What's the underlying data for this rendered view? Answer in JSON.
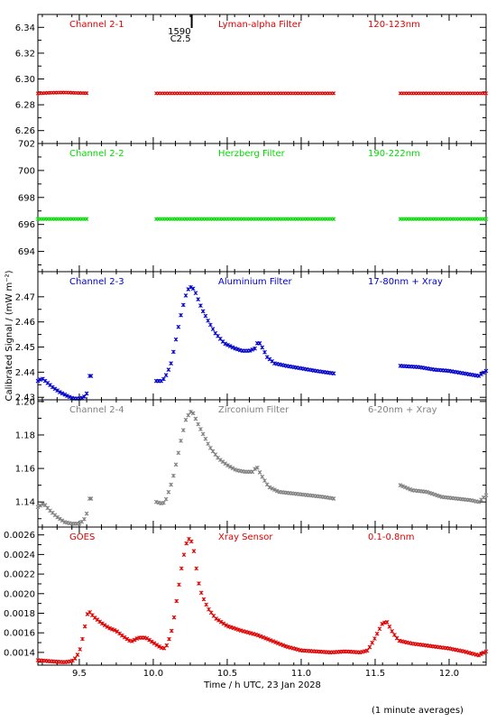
{
  "chart_data": {
    "type": "scatter",
    "xlabel": "Time / h UTC, 23 Jan 2028",
    "ylabel": "Calibrated Signal / (mW m⁻²)",
    "xlim": [
      9.22,
      12.25
    ],
    "xticks": [
      9.5,
      10.0,
      10.5,
      11.0,
      11.5,
      12.0
    ],
    "xtick_labels": [
      "9.5",
      "10.0",
      "10.5",
      "11.0",
      "11.5",
      "12.0"
    ],
    "footnote": "(1 minute averages)",
    "event_marker": {
      "x": 10.26,
      "label_top": "1590",
      "label_bottom": "C2.5"
    },
    "panels": [
      {
        "channel": "Channel 2-1",
        "filter": "Lyman-alpha Filter",
        "range": "120-123nm",
        "color": "#dd0000",
        "ylim": [
          6.25,
          6.35
        ],
        "yticks": [
          6.26,
          6.28,
          6.3,
          6.32,
          6.34
        ],
        "ytick_labels": [
          "6.26",
          "6.28",
          "6.30",
          "6.32",
          "6.34"
        ],
        "segments": [
          {
            "x0": 9.22,
            "x1": 9.55,
            "pts": [
              [
                9.22,
                6.2888
              ],
              [
                9.3,
                6.2893
              ],
              [
                9.4,
                6.2895
              ],
              [
                9.5,
                6.2891
              ],
              [
                9.55,
                6.289
              ]
            ]
          },
          {
            "x0": 10.02,
            "x1": 11.22,
            "pts": [
              [
                10.02,
                6.2889
              ],
              [
                11.22,
                6.2889
              ]
            ]
          },
          {
            "x0": 11.67,
            "x1": 12.25,
            "pts": [
              [
                11.67,
                6.2889
              ],
              [
                12.25,
                6.2889
              ]
            ]
          }
        ]
      },
      {
        "channel": "Channel 2-2",
        "filter": "Herzberg Filter",
        "range": "190-222nm",
        "color": "#00dd00",
        "ylim": [
          692.5,
          702.0
        ],
        "yticks": [
          694,
          696,
          698,
          700,
          702
        ],
        "ytick_labels": [
          "694",
          "696",
          "698",
          "700",
          "702"
        ],
        "segments": [
          {
            "x0": 9.22,
            "x1": 9.55,
            "pts": [
              [
                9.22,
                696.4
              ],
              [
                9.55,
                696.4
              ]
            ]
          },
          {
            "x0": 10.02,
            "x1": 11.22,
            "pts": [
              [
                10.02,
                696.4
              ],
              [
                11.22,
                696.4
              ]
            ]
          },
          {
            "x0": 11.67,
            "x1": 12.25,
            "pts": [
              [
                11.67,
                696.4
              ],
              [
                12.25,
                696.4
              ]
            ]
          }
        ]
      },
      {
        "channel": "Channel 2-3",
        "filter": "Aluminium Filter",
        "range": "17-80nm + Xray",
        "color": "#0000cc",
        "ylim": [
          2.429,
          2.48
        ],
        "yticks": [
          2.43,
          2.44,
          2.45,
          2.46,
          2.47
        ],
        "ytick_labels": [
          "2.43",
          "2.44",
          "2.45",
          "2.46",
          "2.47"
        ],
        "segments": [
          {
            "x0": 9.22,
            "x1": 9.55,
            "pts": [
              [
                9.22,
                2.4365
              ],
              [
                9.25,
                2.4375
              ],
              [
                9.28,
                2.436
              ],
              [
                9.32,
                2.434
              ],
              [
                9.37,
                2.432
              ],
              [
                9.42,
                2.4305
              ],
              [
                9.46,
                2.4295
              ],
              [
                9.5,
                2.4295
              ],
              [
                9.53,
                2.43
              ],
              [
                9.55,
                2.4315
              ]
            ]
          },
          {
            "x0": 9.57,
            "x1": 9.58,
            "pts": [
              [
                9.57,
                2.4385
              ],
              [
                9.58,
                2.4385
              ]
            ]
          },
          {
            "x0": 10.02,
            "x1": 11.22,
            "pts": [
              [
                10.02,
                2.4365
              ],
              [
                10.06,
                2.4365
              ],
              [
                10.08,
                2.438
              ],
              [
                10.1,
                2.4405
              ],
              [
                10.12,
                2.4435
              ],
              [
                10.14,
                2.449
              ],
              [
                10.16,
                2.455
              ],
              [
                10.18,
                2.461
              ],
              [
                10.2,
                2.466
              ],
              [
                10.22,
                2.4705
              ],
              [
                10.24,
                2.4735
              ],
              [
                10.26,
                2.474
              ],
              [
                10.28,
                2.4725
              ],
              [
                10.3,
                2.4695
              ],
              [
                10.33,
                2.465
              ],
              [
                10.37,
                2.4605
              ],
              [
                10.42,
                2.4555
              ],
              [
                10.48,
                2.4515
              ],
              [
                10.55,
                2.4495
              ],
              [
                10.6,
                2.4485
              ],
              [
                10.65,
                2.4485
              ],
              [
                10.69,
                2.4495
              ],
              [
                10.71,
                2.4525
              ],
              [
                10.74,
                2.4495
              ],
              [
                10.77,
                2.446
              ],
              [
                10.82,
                2.4435
              ],
              [
                10.9,
                2.4425
              ],
              [
                11.0,
                2.4415
              ],
              [
                11.1,
                2.4405
              ],
              [
                11.22,
                2.4395
              ]
            ]
          },
          {
            "x0": 11.67,
            "x1": 12.25,
            "pts": [
              [
                11.67,
                2.4425
              ],
              [
                11.8,
                2.442
              ],
              [
                11.9,
                2.441
              ],
              [
                12.0,
                2.4405
              ],
              [
                12.1,
                2.4395
              ],
              [
                12.2,
                2.4385
              ],
              [
                12.25,
                2.4405
              ]
            ]
          }
        ]
      },
      {
        "channel": "Channel 2-4",
        "filter": "Zirconium Filter",
        "range": "6-20nm + Xray",
        "color": "#808080",
        "ylim": [
          1.125,
          1.201
        ],
        "yticks": [
          1.14,
          1.16,
          1.18,
          1.2
        ],
        "ytick_labels": [
          "1.14",
          "1.16",
          "1.18",
          "1.20"
        ],
        "segments": [
          {
            "x0": 9.22,
            "x1": 9.55,
            "pts": [
              [
                9.22,
                1.137
              ],
              [
                9.26,
                1.139
              ],
              [
                9.3,
                1.135
              ],
              [
                9.35,
                1.131
              ],
              [
                9.4,
                1.128
              ],
              [
                9.45,
                1.127
              ],
              [
                9.5,
                1.127
              ],
              [
                9.53,
                1.129
              ],
              [
                9.55,
                1.133
              ]
            ]
          },
          {
            "x0": 9.57,
            "x1": 9.58,
            "pts": [
              [
                9.57,
                1.142
              ],
              [
                9.58,
                1.142
              ]
            ]
          },
          {
            "x0": 10.02,
            "x1": 11.22,
            "pts": [
              [
                10.02,
                1.14
              ],
              [
                10.06,
                1.139
              ],
              [
                10.08,
                1.14
              ],
              [
                10.1,
                1.145
              ],
              [
                10.13,
                1.153
              ],
              [
                10.16,
                1.165
              ],
              [
                10.19,
                1.178
              ],
              [
                10.22,
                1.189
              ],
              [
                10.25,
                1.194
              ],
              [
                10.27,
                1.193
              ],
              [
                10.3,
                1.187
              ],
              [
                10.34,
                1.18
              ],
              [
                10.38,
                1.173
              ],
              [
                10.44,
                1.166
              ],
              [
                10.5,
                1.162
              ],
              [
                10.56,
                1.159
              ],
              [
                10.62,
                1.158
              ],
              [
                10.67,
                1.158
              ],
              [
                10.7,
                1.161
              ],
              [
                10.73,
                1.156
              ],
              [
                10.78,
                1.149
              ],
              [
                10.85,
                1.146
              ],
              [
                10.95,
                1.145
              ],
              [
                11.05,
                1.144
              ],
              [
                11.15,
                1.143
              ],
              [
                11.22,
                1.142
              ]
            ]
          },
          {
            "x0": 11.67,
            "x1": 12.25,
            "pts": [
              [
                11.67,
                1.15
              ],
              [
                11.75,
                1.147
              ],
              [
                11.85,
                1.146
              ],
              [
                11.95,
                1.143
              ],
              [
                12.05,
                1.142
              ],
              [
                12.15,
                1.141
              ],
              [
                12.2,
                1.14
              ],
              [
                12.25,
                1.144
              ]
            ]
          }
        ]
      },
      {
        "channel": "GOES",
        "filter": "Xray Sensor",
        "range": "0.1-0.8nm",
        "color": "#dd0000",
        "ylim": [
          0.00127,
          0.00268
        ],
        "yticks": [
          0.0014,
          0.0016,
          0.0018,
          0.002,
          0.0022,
          0.0024,
          0.0026
        ],
        "ytick_labels": [
          "0.0014",
          "0.0016",
          "0.0018",
          "0.0020",
          "0.0022",
          "0.0024",
          "0.0026"
        ],
        "segments": [
          {
            "x0": 9.22,
            "x1": 12.25,
            "pts": [
              [
                9.22,
                0.00132
              ],
              [
                9.3,
                0.00131
              ],
              [
                9.4,
                0.0013
              ],
              [
                9.45,
                0.00131
              ],
              [
                9.48,
                0.00135
              ],
              [
                9.51,
                0.00145
              ],
              [
                9.54,
                0.00168
              ],
              [
                9.56,
                0.00183
              ],
              [
                9.6,
                0.00176
              ],
              [
                9.65,
                0.0017
              ],
              [
                9.7,
                0.00165
              ],
              [
                9.75,
                0.00162
              ],
              [
                9.8,
                0.00156
              ],
              [
                9.85,
                0.00151
              ],
              [
                9.9,
                0.00155
              ],
              [
                9.95,
                0.00155
              ],
              [
                10.0,
                0.0015
              ],
              [
                10.05,
                0.00145
              ],
              [
                10.08,
                0.00144
              ],
              [
                10.1,
                0.0015
              ],
              [
                10.13,
                0.00165
              ],
              [
                10.16,
                0.00195
              ],
              [
                10.19,
                0.00225
              ],
              [
                10.22,
                0.0025
              ],
              [
                10.24,
                0.00256
              ],
              [
                10.26,
                0.00253
              ],
              [
                10.28,
                0.0024
              ],
              [
                10.3,
                0.00215
              ],
              [
                10.33,
                0.00198
              ],
              [
                10.37,
                0.00185
              ],
              [
                10.42,
                0.00175
              ],
              [
                10.5,
                0.00167
              ],
              [
                10.6,
                0.00162
              ],
              [
                10.7,
                0.00158
              ],
              [
                10.8,
                0.00152
              ],
              [
                10.9,
                0.00146
              ],
              [
                11.0,
                0.00142
              ],
              [
                11.1,
                0.00141
              ],
              [
                11.2,
                0.0014
              ],
              [
                11.3,
                0.00141
              ],
              [
                11.4,
                0.0014
              ],
              [
                11.45,
                0.00142
              ],
              [
                11.5,
                0.00155
              ],
              [
                11.55,
                0.0017
              ],
              [
                11.58,
                0.00171
              ],
              [
                11.62,
                0.0016
              ],
              [
                11.66,
                0.00152
              ],
              [
                11.75,
                0.00149
              ],
              [
                11.9,
                0.00146
              ],
              [
                12.0,
                0.00144
              ],
              [
                12.1,
                0.00141
              ],
              [
                12.2,
                0.00137
              ],
              [
                12.25,
                0.00141
              ]
            ]
          }
        ]
      }
    ]
  }
}
